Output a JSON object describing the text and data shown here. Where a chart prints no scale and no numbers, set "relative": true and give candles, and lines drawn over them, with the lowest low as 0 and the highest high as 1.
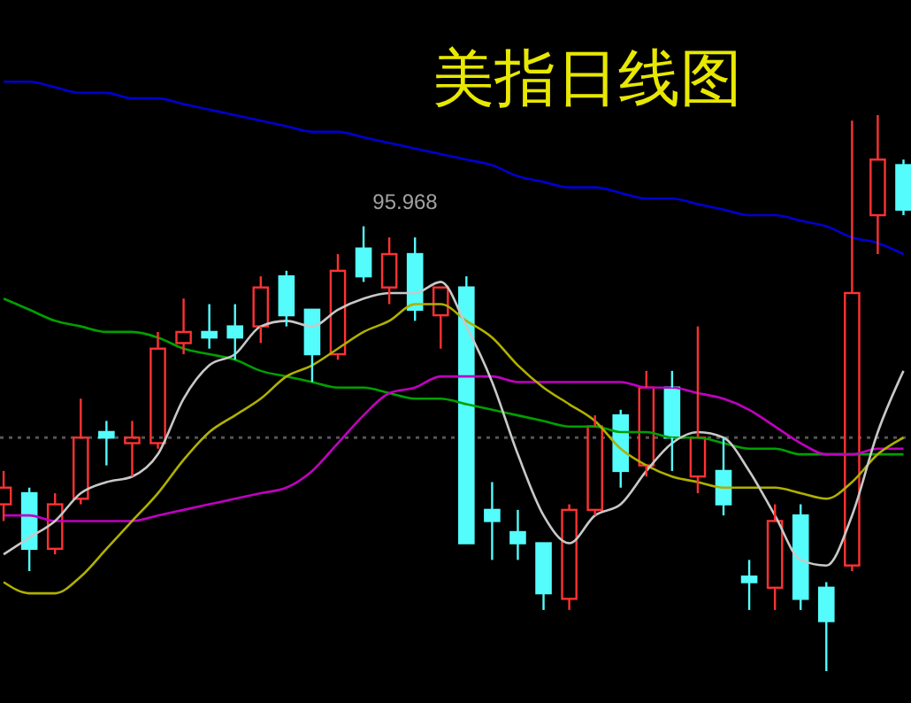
{
  "chart_data": {
    "type": "candlestick",
    "title": "美指日线图",
    "relative": true,
    "categories": [
      null,
      null,
      null,
      null,
      null,
      null,
      null,
      null,
      null,
      null,
      null,
      null,
      null,
      null,
      null,
      null,
      null,
      null,
      null,
      null,
      null,
      null,
      null,
      null,
      null,
      null,
      null,
      null,
      null,
      null,
      null,
      null,
      null,
      null,
      null,
      null
    ],
    "ohlc": [
      [
        0.3,
        0.36,
        0.27,
        0.33
      ],
      [
        0.32,
        0.33,
        0.18,
        0.22
      ],
      [
        0.22,
        0.32,
        0.21,
        0.3
      ],
      [
        0.31,
        0.49,
        0.3,
        0.42
      ],
      [
        0.43,
        0.45,
        0.37,
        0.42
      ],
      [
        0.41,
        0.45,
        0.35,
        0.42
      ],
      [
        0.41,
        0.61,
        0.4,
        0.58
      ],
      [
        0.59,
        0.67,
        0.57,
        0.61
      ],
      [
        0.61,
        0.66,
        0.58,
        0.6
      ],
      [
        0.62,
        0.66,
        0.56,
        0.6
      ],
      [
        0.62,
        0.71,
        0.59,
        0.69
      ],
      [
        0.71,
        0.72,
        0.62,
        0.64
      ],
      [
        0.65,
        0.65,
        0.52,
        0.57
      ],
      [
        0.57,
        0.75,
        0.56,
        0.72
      ],
      [
        0.76,
        0.8,
        0.7,
        0.71
      ],
      [
        0.69,
        0.78,
        0.66,
        0.75
      ],
      [
        0.75,
        0.78,
        0.63,
        0.65
      ],
      [
        0.64,
        0.69,
        0.58,
        0.69
      ],
      [
        0.69,
        0.71,
        0.23,
        0.23
      ],
      [
        0.29,
        0.34,
        0.2,
        0.27
      ],
      [
        0.25,
        0.29,
        0.2,
        0.23
      ],
      [
        0.23,
        0.23,
        0.11,
        0.14
      ],
      [
        0.13,
        0.3,
        0.11,
        0.29
      ],
      [
        0.29,
        0.46,
        0.28,
        0.44
      ],
      [
        0.46,
        0.47,
        0.33,
        0.36
      ],
      [
        0.37,
        0.54,
        0.35,
        0.51
      ],
      [
        0.51,
        0.54,
        0.36,
        0.42
      ],
      [
        0.35,
        0.62,
        0.32,
        0.42
      ],
      [
        0.36,
        0.42,
        0.28,
        0.3
      ],
      [
        0.17,
        0.2,
        0.11,
        0.16
      ],
      [
        0.15,
        0.3,
        0.11,
        0.27
      ],
      [
        0.28,
        0.3,
        0.11,
        0.13
      ],
      [
        0.15,
        0.16,
        0,
        0.09
      ],
      [
        0.19,
        0.99,
        0.18,
        0.68
      ],
      [
        0.82,
        1,
        0.75,
        0.92
      ],
      [
        0.91,
        0.92,
        0.82,
        0.83
      ]
    ],
    "colors": [
      "#ff3232",
      "#54fcfc",
      "#ff3232",
      "#ff3232",
      "#54fcfc",
      "#ff3232",
      "#ff3232",
      "#ff3232",
      "#54fcfc",
      "#54fcfc",
      "#ff3232",
      "#54fcfc",
      "#54fcfc",
      "#ff3232",
      "#54fcfc",
      "#ff3232",
      "#54fcfc",
      "#ff3232",
      "#54fcfc",
      "#54fcfc",
      "#54fcfc",
      "#54fcfc",
      "#ff3232",
      "#ff3232",
      "#54fcfc",
      "#ff3232",
      "#54fcfc",
      "#ff3232",
      "#54fcfc",
      "#54fcfc",
      "#ff3232",
      "#54fcfc",
      "#54fcfc",
      "#ff3232",
      "#ff3232",
      "#54fcfc"
    ],
    "series": [
      {
        "type": "line",
        "color": "#0000d0",
        "values": [
          1.06,
          1.06,
          1.05,
          1.04,
          1.04,
          1.03,
          1.03,
          1.02,
          1.01,
          1.0,
          0.99,
          0.98,
          0.97,
          0.97,
          0.96,
          0.95,
          0.94,
          0.93,
          0.92,
          0.91,
          0.89,
          0.88,
          0.87,
          0.87,
          0.86,
          0.85,
          0.85,
          0.84,
          0.83,
          0.82,
          0.82,
          0.81,
          0.8,
          0.78,
          0.77,
          0.75
        ]
      },
      {
        "type": "line",
        "color": "#00a000",
        "values": [
          0.67,
          0.65,
          0.63,
          0.62,
          0.61,
          0.61,
          0.6,
          0.58,
          0.57,
          0.56,
          0.54,
          0.53,
          0.52,
          0.51,
          0.51,
          0.5,
          0.49,
          0.49,
          0.48,
          0.47,
          0.46,
          0.45,
          0.44,
          0.44,
          0.43,
          0.43,
          0.42,
          0.42,
          0.41,
          0.4,
          0.4,
          0.39,
          0.39,
          0.39,
          0.39,
          0.39
        ]
      },
      {
        "type": "line",
        "color": "#c000c0",
        "values": [
          0.28,
          0.28,
          0.27,
          0.27,
          0.27,
          0.27,
          0.28,
          0.29,
          0.3,
          0.31,
          0.32,
          0.33,
          0.36,
          0.41,
          0.46,
          0.5,
          0.51,
          0.53,
          0.53,
          0.53,
          0.52,
          0.52,
          0.52,
          0.52,
          0.52,
          0.51,
          0.51,
          0.5,
          0.49,
          0.47,
          0.44,
          0.41,
          0.39,
          0.39,
          0.4,
          0.4
        ]
      },
      {
        "type": "line",
        "color": "#b0b000",
        "values": [
          0.16,
          0.14,
          0.14,
          0.17,
          0.22,
          0.27,
          0.32,
          0.38,
          0.43,
          0.46,
          0.49,
          0.53,
          0.55,
          0.58,
          0.61,
          0.63,
          0.66,
          0.66,
          0.63,
          0.6,
          0.55,
          0.51,
          0.48,
          0.45,
          0.4,
          0.37,
          0.35,
          0.34,
          0.33,
          0.33,
          0.33,
          0.32,
          0.31,
          0.34,
          0.39,
          0.42
        ]
      },
      {
        "type": "line",
        "color": "#c8c8c8",
        "values": [
          0.21,
          0.24,
          0.27,
          0.32,
          0.34,
          0.35,
          0.39,
          0.49,
          0.55,
          0.57,
          0.62,
          0.63,
          0.62,
          0.65,
          0.67,
          0.68,
          0.68,
          0.7,
          0.62,
          0.52,
          0.39,
          0.28,
          0.23,
          0.28,
          0.3,
          0.36,
          0.41,
          0.43,
          0.42,
          0.36,
          0.28,
          0.2,
          0.19,
          0.28,
          0.43,
          0.54
        ]
      }
    ],
    "ref_lines": [
      {
        "axis": "y",
        "value": 0.42,
        "color": "#555555",
        "line_style": "dotted"
      }
    ],
    "annotations": [
      "95.968"
    ]
  }
}
